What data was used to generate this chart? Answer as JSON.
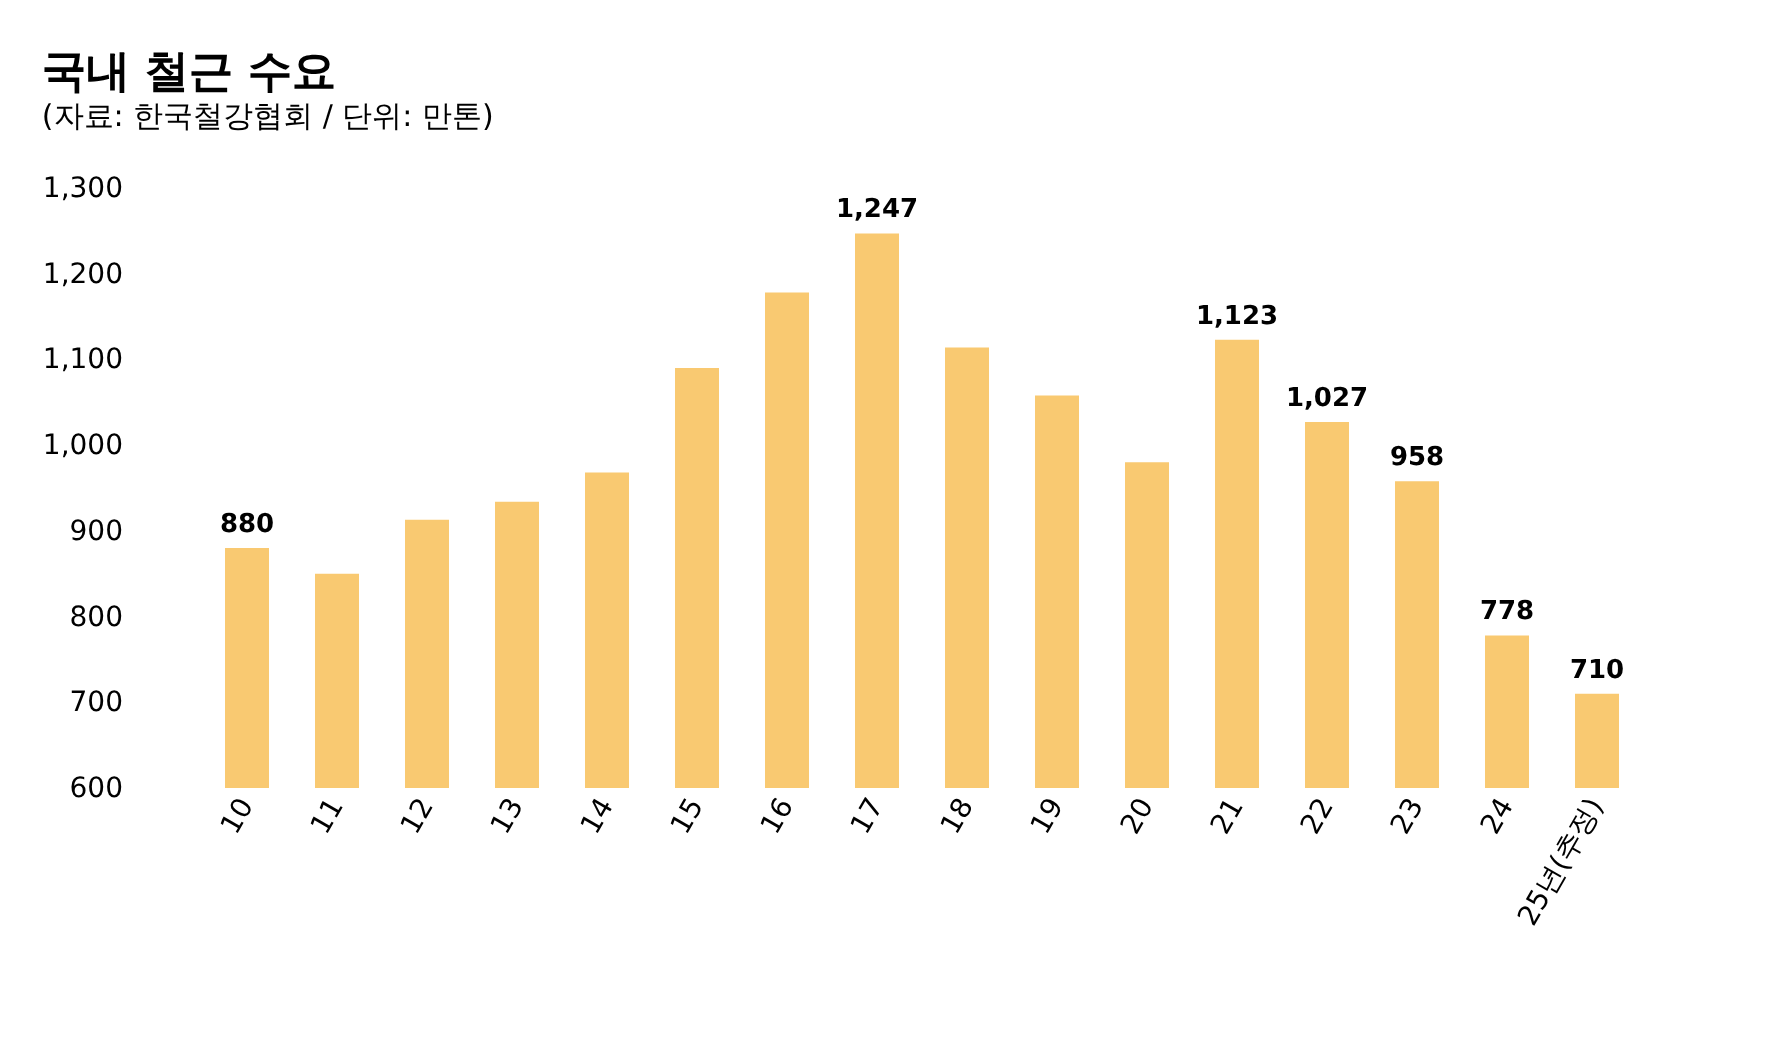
{
  "chart_data": {
    "type": "bar",
    "title": "국내 철근 수요",
    "subtitle": "(자료: 한국철강협회 / 단위: 만톤)",
    "categories": [
      "10",
      "11",
      "12",
      "13",
      "14",
      "15",
      "16",
      "17",
      "18",
      "19",
      "20",
      "21",
      "22",
      "23",
      "24",
      "25년(추정)"
    ],
    "values": [
      880,
      850,
      913,
      934,
      968,
      1090,
      1178,
      1247,
      1114,
      1058,
      980,
      1123,
      1027,
      958,
      778,
      710
    ],
    "value_labels": [
      "880",
      null,
      null,
      null,
      null,
      null,
      null,
      "1,247",
      null,
      null,
      null,
      "1,123",
      "1,027",
      "958",
      "778",
      "710"
    ],
    "color": "#f9c971",
    "ylim": [
      600,
      1300
    ],
    "yticks": [
      {
        "value": 600,
        "label": "600"
      },
      {
        "value": 700,
        "label": "700"
      },
      {
        "value": 800,
        "label": "800"
      },
      {
        "value": 900,
        "label": "900"
      },
      {
        "value": 1000,
        "label": "1,000"
      },
      {
        "value": 1100,
        "label": "1,100"
      },
      {
        "value": 1200,
        "label": "1,200"
      },
      {
        "value": 1300,
        "label": "1,300"
      }
    ],
    "grid": false
  }
}
